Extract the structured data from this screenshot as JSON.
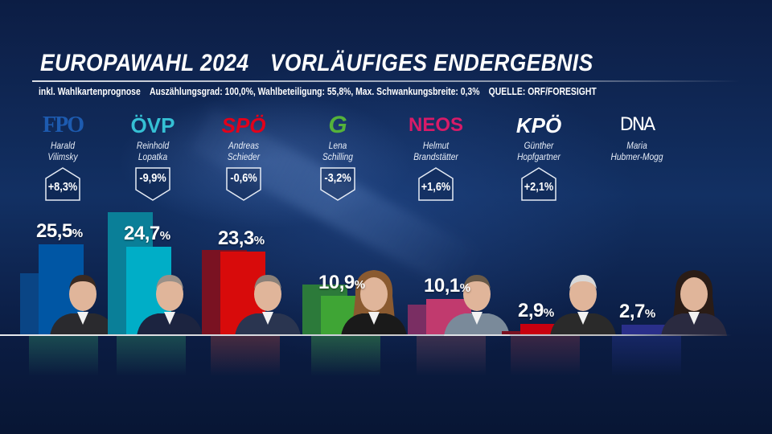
{
  "header": {
    "title_left": "EUROPAWAHL 2024",
    "title_right": "VORLÄUFIGES ENDERGEBNIS",
    "subtitle": [
      "inkl. Wahlkartenprognose",
      "Auszählungsgrad: 100,0%, Wahlbeteiligung: 55,8%, Max. Schwankungsbreite: 0,3%",
      "QUELLE: ORF/FORESIGHT"
    ]
  },
  "parties": [
    {
      "logo": "FPÖ",
      "logo_text": "FPO",
      "candidate_line1": "Harald",
      "candidate_line2": "Vilimsky",
      "change": "+8,3%",
      "direction": "up",
      "result": "25,5",
      "color": "#0056a4",
      "prev_color": "#0a4585",
      "refl_color": "#1f5a55"
    },
    {
      "logo": "ÖVP",
      "logo_text": "ÖVP",
      "candidate_line1": "Reinhold",
      "candidate_line2": "Lopatka",
      "change": "-9,9%",
      "direction": "down",
      "result": "24,7",
      "color": "#00aec7",
      "prev_color": "#0a7f98",
      "refl_color": "#1f5a55"
    },
    {
      "logo": "SPÖ",
      "logo_text": "SPÖ",
      "candidate_line1": "Andreas",
      "candidate_line2": "Schieder",
      "change": "-0,6%",
      "direction": "down",
      "result": "23,3",
      "color": "#d80b0b",
      "prev_color": "#7a1222",
      "refl_color": "#5a3040"
    },
    {
      "logo": "GRÜNE",
      "logo_text": "G",
      "candidate_line1": "Lena",
      "candidate_line2": "Schilling",
      "change": "-3,2%",
      "direction": "down",
      "result": "10,9",
      "color": "#3fa535",
      "prev_color": "#2c7a3a",
      "refl_color": "#2a6a45"
    },
    {
      "logo": "NEOS",
      "logo_text": "NEOS",
      "candidate_line1": "Helmut",
      "candidate_line2": "Brandstätter",
      "change": "+1,6%",
      "direction": "up",
      "result": "10,1",
      "color": "#c13a6e",
      "prev_color": "#7a2e63",
      "refl_color": "#4a3550"
    },
    {
      "logo": "KPÖ",
      "logo_text": "KPÖ",
      "candidate_line1": "Günther",
      "candidate_line2": "Hopfgartner",
      "change": "+2,1%",
      "direction": "up",
      "result": "2,9",
      "color": "#c8000f",
      "prev_color": "#7a1222",
      "refl_color": "#4a2a45"
    },
    {
      "logo": "DNA",
      "logo_text": "DNA",
      "candidate_line1": "Maria",
      "candidate_line2": "Hubmer-Mogg",
      "change": "",
      "direction": "",
      "result": "2,7",
      "color": "#2a2f8a",
      "prev_color": "#2a2f8a",
      "refl_color": "#1a2a70"
    }
  ],
  "percent_sign": "%",
  "chart_data": {
    "type": "bar",
    "categories": [
      "FPÖ",
      "ÖVP",
      "SPÖ",
      "GRÜNE",
      "NEOS",
      "KPÖ",
      "DNA"
    ],
    "series": [
      {
        "values": [
          25.5,
          24.7,
          23.3,
          10.9,
          10.1,
          2.9,
          2.7
        ]
      },
      {
        "values": [
          17.2,
          34.6,
          23.9,
          14.1,
          8.5,
          0.8,
          null
        ]
      }
    ],
    "changes": [
      8.3,
      -9.9,
      -0.6,
      -3.2,
      1.6,
      2.1,
      null
    ],
    "ylim": [
      0,
      36
    ],
    "grid": false,
    "legend": "none"
  }
}
